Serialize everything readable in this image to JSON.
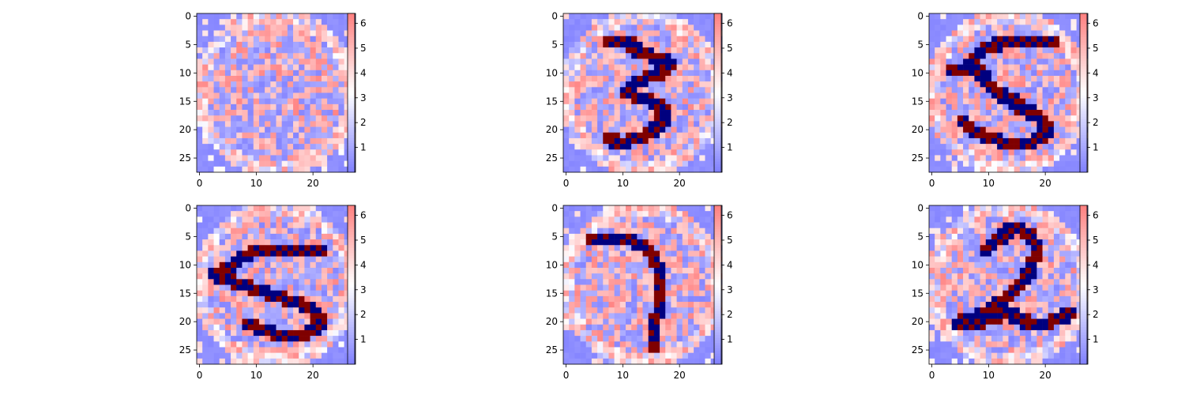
{
  "chart_data": {
    "type": "heatmap",
    "grid": {
      "rows": 2,
      "cols": 3
    },
    "colormap": "bwr",
    "colors": {
      "low": "#7777ff",
      "mid": "#ffffff",
      "high": "#ff7777",
      "digit_low": "#00007f",
      "digit_high": "#7f0000"
    },
    "image_size": [
      28,
      28
    ],
    "x_ticks": [
      "0",
      "10",
      "20"
    ],
    "y_ticks": [
      "0",
      "5",
      "10",
      "15",
      "20",
      "25"
    ],
    "colorbar": {
      "range": [
        0,
        6.4
      ],
      "ticks": [
        "1",
        "2",
        "3",
        "4",
        "5",
        "6"
      ]
    },
    "panels": [
      {
        "digit": "none"
      },
      {
        "digit": "3"
      },
      {
        "digit": "5"
      },
      {
        "digit": "5"
      },
      {
        "digit": "7"
      },
      {
        "digit": "2"
      }
    ]
  }
}
